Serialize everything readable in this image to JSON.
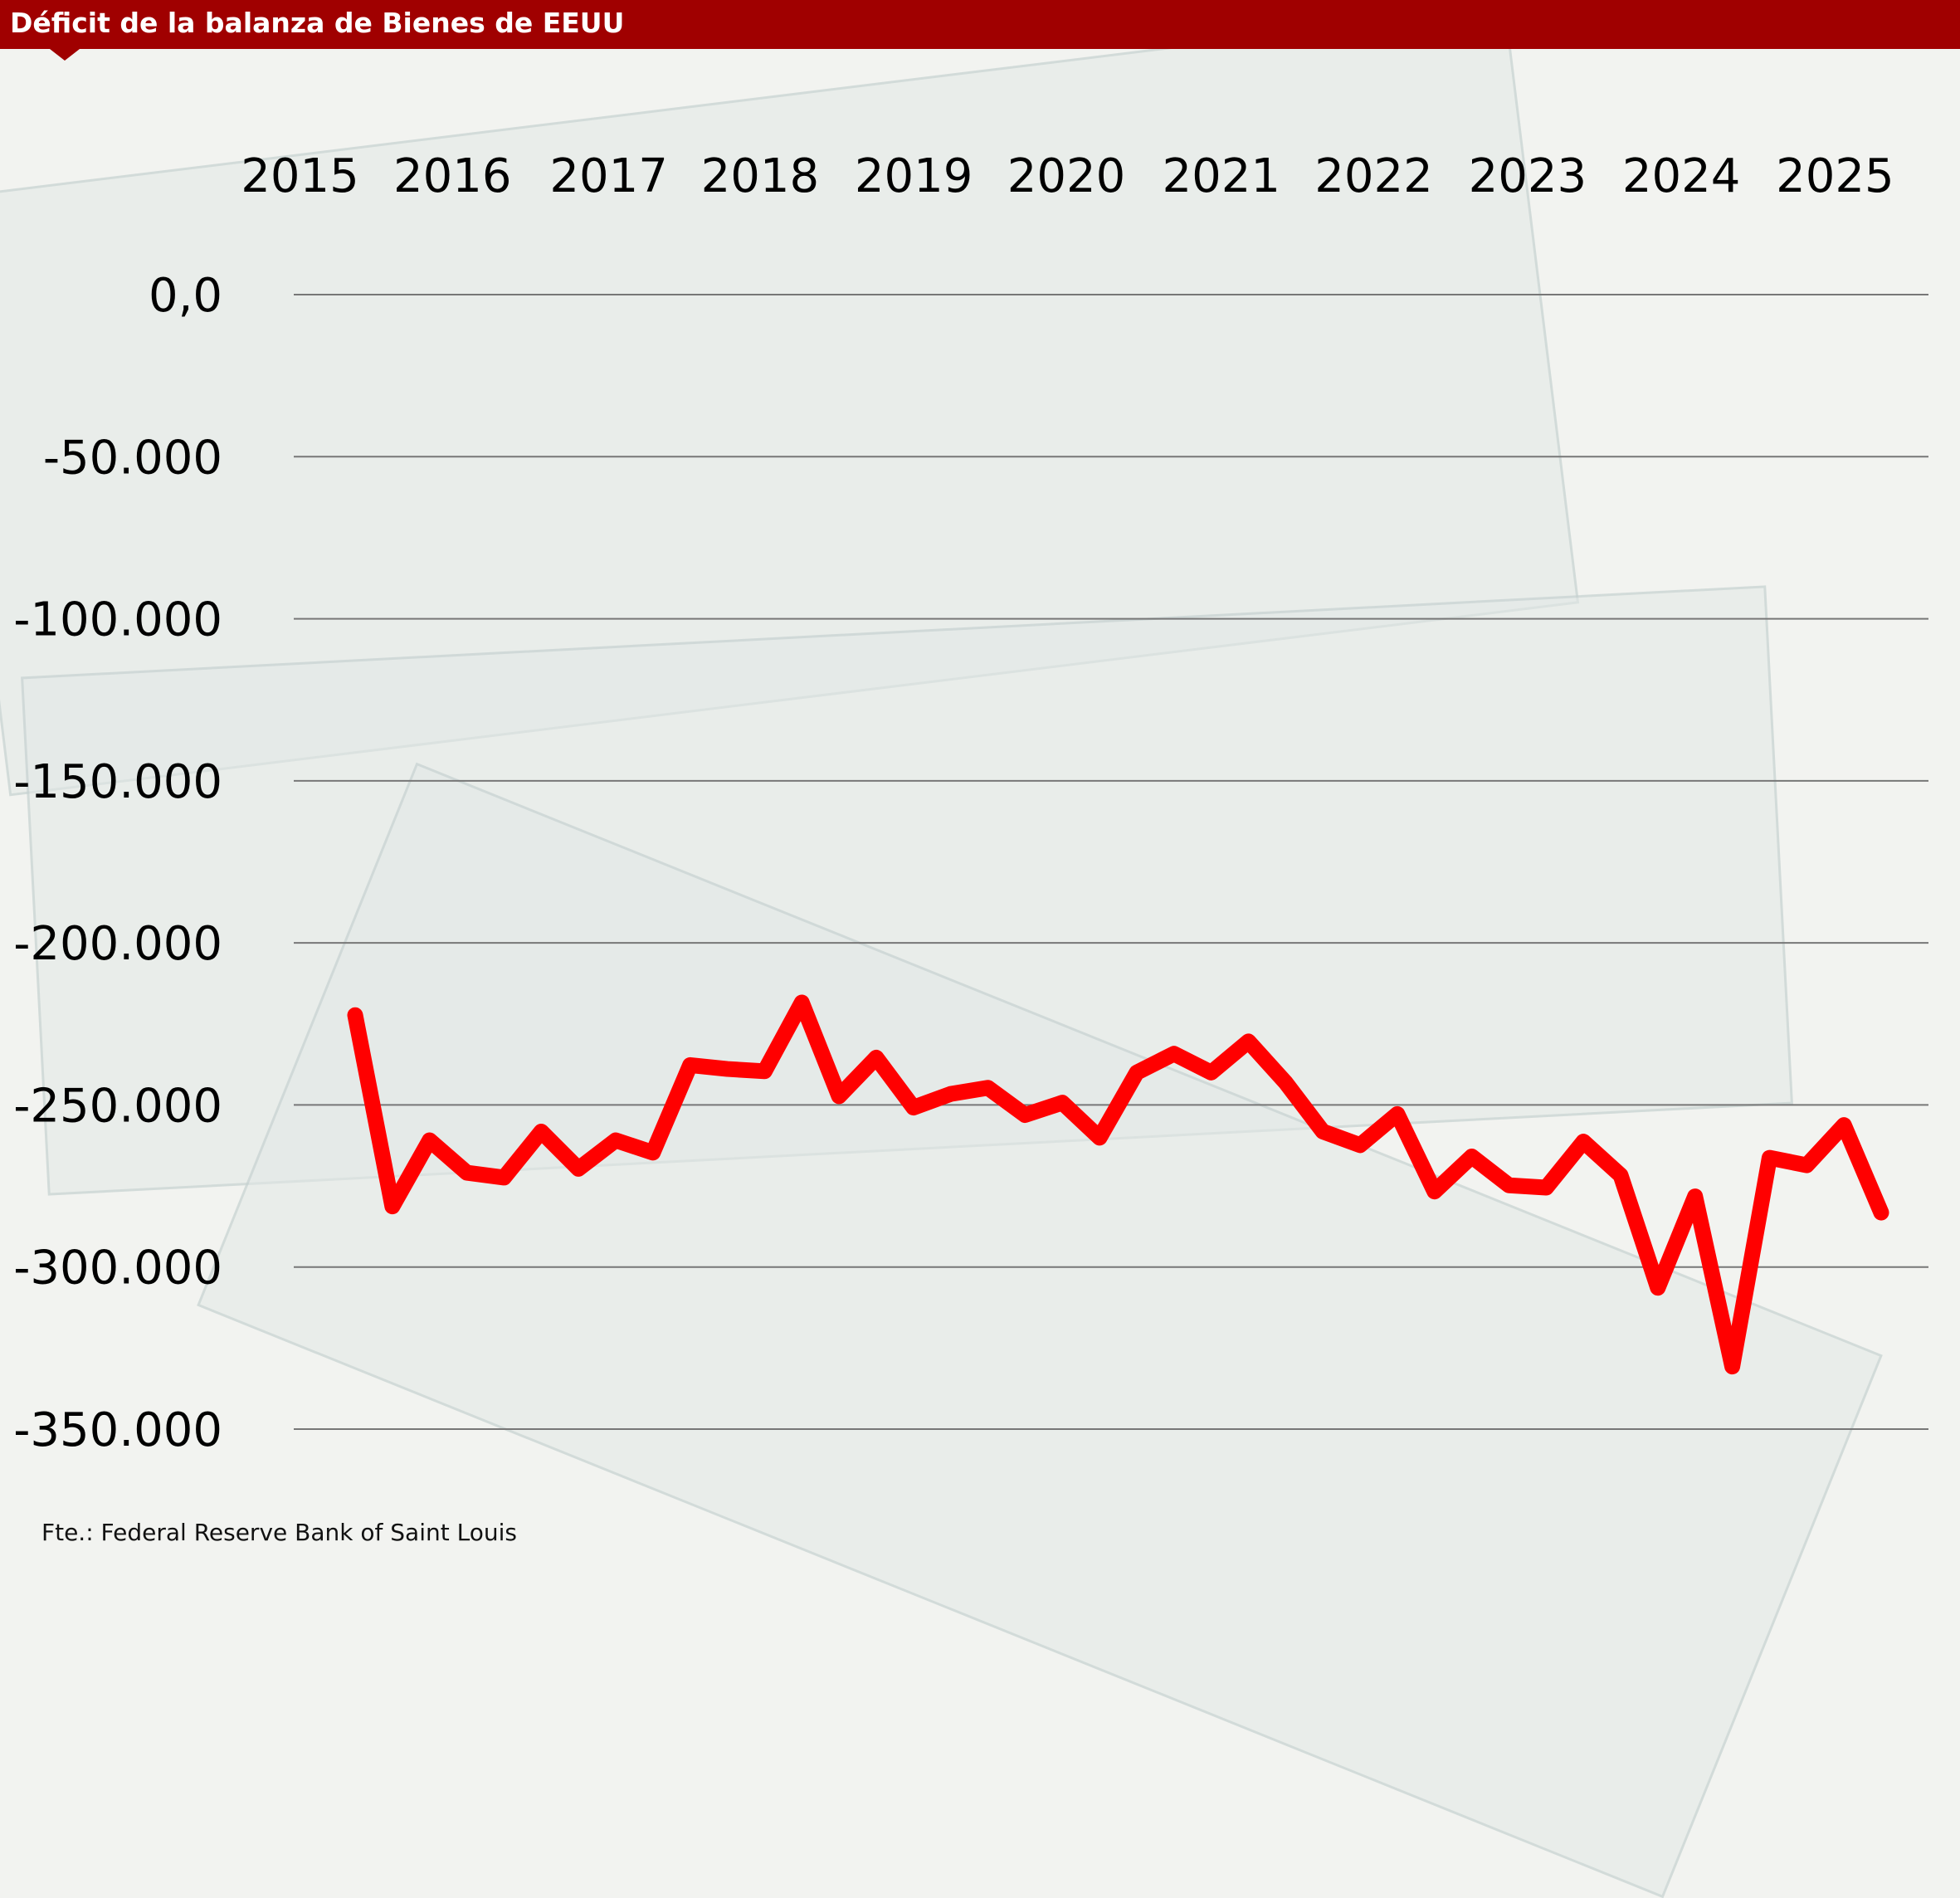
{
  "title": "Déficit de la balanza de Bienes de EEUU",
  "source": "Fte.: Federal Reserve Bank of Saint Louis",
  "colors": {
    "title_bar": "#a00000",
    "line": "#ff0000",
    "grid": "#777777"
  },
  "chart_data": {
    "type": "line",
    "title": "Déficit de la balanza de Bienes de EEUU",
    "xlabel": "",
    "ylabel": "",
    "x_tick_labels": [
      "2015",
      "2016",
      "2017",
      "2018",
      "2019",
      "2020",
      "2021",
      "2022",
      "2023",
      "2024",
      "2025"
    ],
    "y_tick_labels": [
      "0,0",
      "-50.000",
      "-100.000",
      "-150.000",
      "-200.000",
      "-250.000",
      "-300.000",
      "-350.000"
    ],
    "y_ticks": [
      0,
      -50000,
      -100000,
      -150000,
      -200000,
      -250000,
      -300000,
      -350000
    ],
    "ylim": [
      -350000,
      0
    ],
    "grid": true,
    "legend": "none",
    "values": [
      -222300,
      -281300,
      -260900,
      -270900,
      -272400,
      -258200,
      -269700,
      -260900,
      -264700,
      -237700,
      -238900,
      -239600,
      -218400,
      -247300,
      -235400,
      -250800,
      -246600,
      -244700,
      -253100,
      -249300,
      -260100,
      -240000,
      -234200,
      -240000,
      -230400,
      -243100,
      -258200,
      -262400,
      -252800,
      -276700,
      -265900,
      -274800,
      -275500,
      -261300,
      -271700,
      -306400,
      -278200,
      -330700,
      -266300,
      -268600,
      -256200,
      -283200
    ]
  }
}
